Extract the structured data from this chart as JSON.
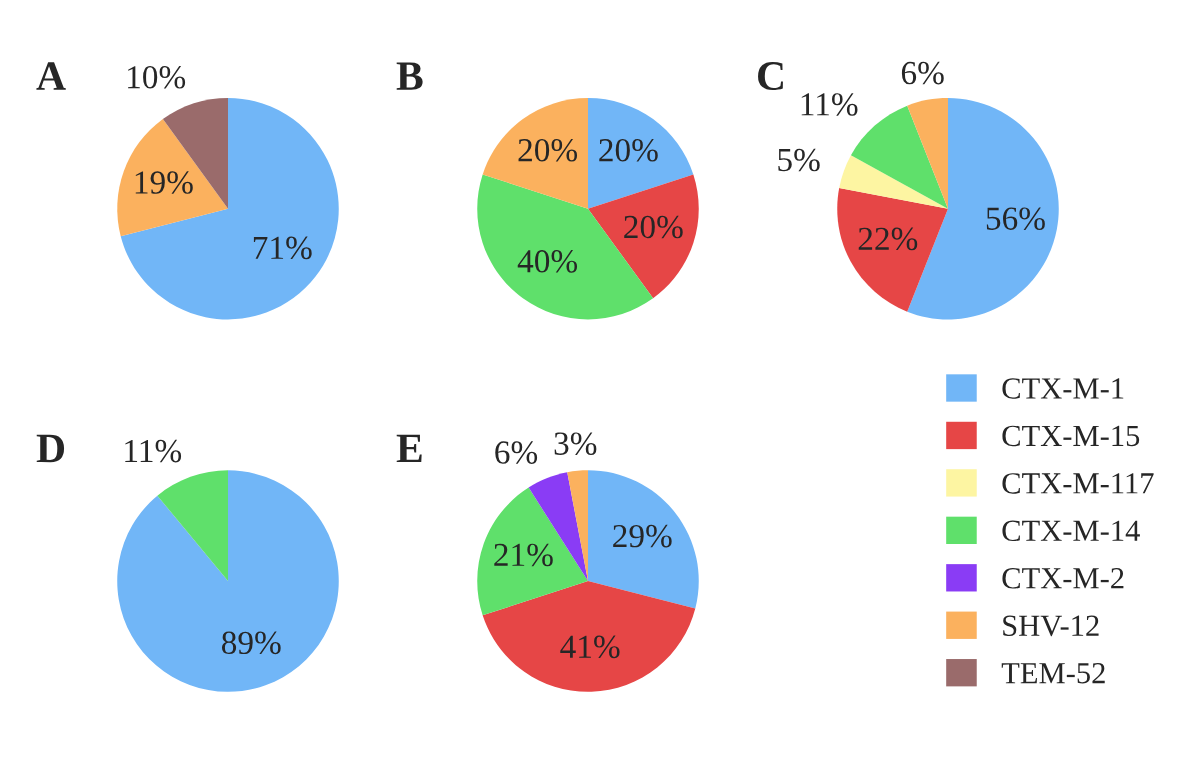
{
  "chart_data": [
    {
      "type": "pie",
      "title": "A",
      "categories": [
        null,
        null,
        null
      ],
      "values": [
        71,
        19,
        10
      ],
      "value_labels": [
        "71%",
        "19%",
        "10%"
      ],
      "colors": [
        "#71b6f7",
        "#fbb15e",
        "#9a6b6b"
      ]
    },
    {
      "type": "pie",
      "title": "B",
      "categories": [
        null,
        null,
        null,
        null
      ],
      "values": [
        20,
        20,
        40,
        20
      ],
      "value_labels": [
        "20%",
        "20%",
        "40%",
        "20%"
      ],
      "colors": [
        "#71b6f7",
        "#e64646",
        "#5fe06b",
        "#fbb15e"
      ]
    },
    {
      "type": "pie",
      "title": "C",
      "categories": [
        null,
        null,
        null,
        null,
        null
      ],
      "values": [
        56,
        22,
        5,
        11,
        6
      ],
      "value_labels": [
        "56%",
        "22%",
        "5%",
        "11%",
        "6%"
      ],
      "colors": [
        "#71b6f7",
        "#e64646",
        "#fdf5a2",
        "#5fe06b",
        "#fbb15e"
      ]
    },
    {
      "type": "pie",
      "title": "D",
      "categories": [
        null,
        null
      ],
      "values": [
        89,
        11
      ],
      "value_labels": [
        "89%",
        "11%"
      ],
      "colors": [
        "#71b6f7",
        "#5fe06b"
      ]
    },
    {
      "type": "pie",
      "title": "E",
      "categories": [
        "CTX-M-1",
        "CTX-M-15",
        "CTX-M-117",
        "CTX-M-14",
        "CTX-M-2",
        "SHV-12",
        "TEM-52"
      ],
      "values": [
        29,
        41,
        null,
        21,
        6,
        3,
        null
      ],
      "value_labels": [
        "29%",
        "41%",
        null,
        "21%",
        "6%",
        "3%",
        null
      ],
      "colors": [
        "#71b6f7",
        "#e64646",
        "#fdf5a2",
        "#5fe06b",
        "#8a3cf5",
        "#fbb15e",
        "#9a6b6b"
      ],
      "legend": "right"
    }
  ]
}
